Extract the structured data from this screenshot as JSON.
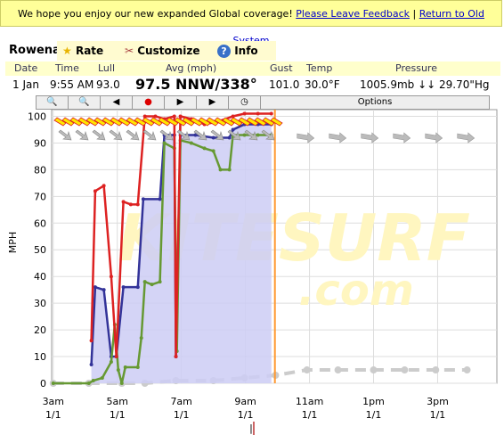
{
  "banner": {
    "text": "We hope you enjoy our new expanded Global coverage!",
    "links": [
      "Please Leave Feedback",
      "Return to Old System"
    ]
  },
  "tabs": {
    "station": "Rowena",
    "items": [
      "Rate",
      "Customize",
      "Info"
    ]
  },
  "current": {
    "headers": [
      "Date",
      "Time",
      "Lull",
      "Avg (mph)",
      "Gust",
      "Temp",
      "Pressure"
    ],
    "values": [
      "1 Jan",
      "9:55 AM",
      "93.0",
      "97.5 NNW/338°",
      "101.0",
      "30.0°F",
      "1005.9mb ↓↓ 29.70\"Hg"
    ]
  },
  "toolbar": {
    "options": "Options"
  },
  "chart": {
    "type": "line",
    "ylabel": "MPH",
    "watermark": [
      "KITESURF",
      ".com"
    ],
    "ylim": [
      0,
      102.5
    ],
    "yticks": [
      0,
      10,
      20,
      30,
      40,
      50,
      60,
      70,
      80,
      90,
      100
    ],
    "xlim": [
      2.95,
      16.85
    ],
    "xticks": [
      {
        "value": 3,
        "label": "3am",
        "date": "1/1"
      },
      {
        "value": 5,
        "label": "5am",
        "date": "1/1"
      },
      {
        "value": 7,
        "label": "7am",
        "date": "1/1"
      },
      {
        "value": 9,
        "label": "9am",
        "date": "1/1"
      },
      {
        "value": 11,
        "label": "11am",
        "date": "1/1"
      },
      {
        "value": 13,
        "label": "1pm",
        "date": "1/1"
      },
      {
        "value": 15,
        "label": "3pm",
        "date": "1/1"
      }
    ],
    "grid": true,
    "now": 9.92,
    "now_color": "#ff9933",
    "series": [
      {
        "color": "#cccccc",
        "dashed": true,
        "x": [
          3,
          4.11,
          5.14,
          5.86,
          6.83,
          8.0,
          8.97,
          9.94,
          10.92,
          11.89,
          13.0,
          13.97,
          14.94,
          15.92
        ],
        "values": [
          0,
          0,
          0,
          0,
          1,
          1,
          2,
          3,
          5,
          5,
          5,
          5,
          5,
          5
        ]
      },
      {
        "color": "#333399",
        "fill": "#ccccf5",
        "x": [
          4.19,
          4.31,
          4.58,
          4.81,
          4.97,
          5.19,
          5.64,
          5.81,
          6.33,
          6.47,
          6.78,
          6.83,
          6.97,
          7.44,
          8.0,
          8.22,
          8.5,
          8.61,
          8.97,
          9.39,
          9.81
        ],
        "values": [
          7,
          36,
          35,
          10,
          10,
          36,
          36,
          69,
          69,
          93,
          93,
          10,
          93,
          93,
          92,
          92,
          92,
          95,
          97,
          97,
          97
        ]
      },
      {
        "color": "#669933",
        "x": [
          3,
          4.11,
          4.25,
          4.53,
          4.81,
          4.92,
          5.03,
          5.14,
          5.25,
          5.64,
          5.75,
          5.86,
          6.08,
          6.33,
          6.47,
          6.78,
          6.86,
          6.97,
          7.31,
          7.72,
          8.0,
          8.22,
          8.5,
          8.61,
          8.97,
          9.39,
          9.81
        ],
        "values": [
          0,
          0,
          1,
          2,
          8,
          22,
          5,
          0,
          6,
          6,
          17,
          38,
          37,
          38,
          90,
          88,
          12,
          91,
          90,
          88,
          87,
          80,
          80,
          93,
          93,
          93,
          93
        ]
      },
      {
        "color": "#dd2222",
        "x": [
          4.19,
          4.31,
          4.58,
          4.81,
          4.97,
          5.19,
          5.42,
          5.64,
          5.86,
          6.19,
          6.47,
          6.78,
          6.83,
          6.97,
          7.31,
          7.72,
          8.14,
          8.61,
          8.97,
          9.39,
          9.81
        ],
        "values": [
          16,
          72,
          74,
          40,
          10,
          68,
          67,
          67,
          100,
          100,
          99,
          100,
          10,
          100,
          99,
          97,
          98,
          100,
          101,
          101,
          101
        ]
      }
    ]
  }
}
